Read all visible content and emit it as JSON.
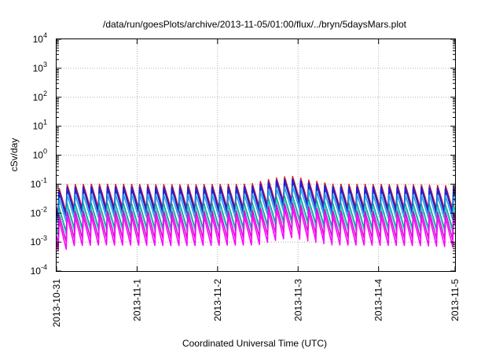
{
  "chart_data": {
    "type": "line",
    "title": "/data/run/goesPlots/archive/2013-11-05/01:00/flux/../bryn/5daysMars.plot",
    "xlabel": "Coordinated Universal Time (UTC)",
    "ylabel": "cSv/day",
    "yscale": "log",
    "ylim": [
      0.0001,
      10000
    ],
    "xlim_days": [
      0,
      4.95
    ],
    "y_ticks": [
      {
        "value": 0.0001,
        "base": "10",
        "exp": "-4"
      },
      {
        "value": 0.001,
        "base": "10",
        "exp": "-3"
      },
      {
        "value": 0.01,
        "base": "10",
        "exp": "-2"
      },
      {
        "value": 0.1,
        "base": "10",
        "exp": "-1"
      },
      {
        "value": 1,
        "base": "10",
        "exp": "0"
      },
      {
        "value": 10,
        "base": "10",
        "exp": "1"
      },
      {
        "value": 100,
        "base": "10",
        "exp": "2"
      },
      {
        "value": 1000,
        "base": "10",
        "exp": "3"
      },
      {
        "value": 10000,
        "base": "10",
        "exp": "4"
      }
    ],
    "x_ticks": [
      {
        "label": "2013-10-31",
        "day": 0
      },
      {
        "label": "2013-11-1",
        "day": 1
      },
      {
        "label": "2013-11-2",
        "day": 2
      },
      {
        "label": "2013-11-3",
        "day": 3
      },
      {
        "label": "2013-11-4",
        "day": 4
      },
      {
        "label": "2013-11-5",
        "day": 5
      }
    ],
    "grid": true,
    "grid_color": "#b0b0b0",
    "cycles_per_day": 10,
    "series": [
      {
        "color": "#e8161c",
        "peak": 0.1,
        "trough": 0.015,
        "width": 1.6
      },
      {
        "color": "#2222cc",
        "peak": 0.08,
        "trough": 0.011,
        "width": 2.2
      },
      {
        "color": "#1ea3e8",
        "peak": 0.045,
        "trough": 0.007,
        "width": 1.6
      },
      {
        "color": "#0f8f8f",
        "peak": 0.022,
        "trough": 0.0032,
        "width": 1.3
      },
      {
        "color": "#2fd0c8",
        "peak": 0.018,
        "trough": 0.0025,
        "width": 1.3
      },
      {
        "color": "#d010c8",
        "peak": 0.012,
        "trough": 0.0014,
        "width": 1.6
      },
      {
        "color": "#ff00ff",
        "peak": 0.008,
        "trough": 0.0008,
        "width": 1.6
      }
    ],
    "envelope": [
      {
        "day": 0.0,
        "factor": 0.65
      },
      {
        "day": 0.1,
        "factor": 0.95
      },
      {
        "day": 0.5,
        "factor": 1.0
      },
      {
        "day": 1.5,
        "factor": 0.95
      },
      {
        "day": 2.4,
        "factor": 1.0
      },
      {
        "day": 2.7,
        "factor": 1.6
      },
      {
        "day": 2.9,
        "factor": 1.9
      },
      {
        "day": 3.1,
        "factor": 1.4
      },
      {
        "day": 3.4,
        "factor": 1.0
      },
      {
        "day": 4.5,
        "factor": 0.95
      },
      {
        "day": 4.95,
        "factor": 0.85
      }
    ]
  }
}
